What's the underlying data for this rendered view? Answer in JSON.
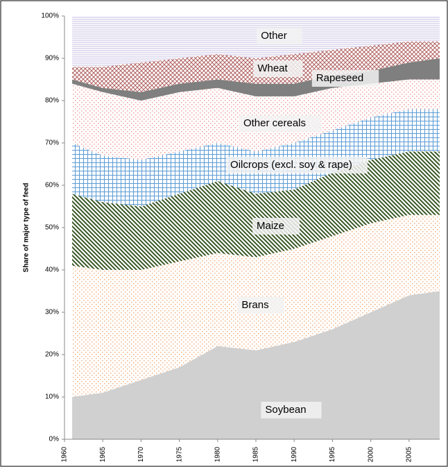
{
  "chart_data": {
    "type": "stacked_area",
    "y_label": "Share of major type of feed",
    "x": [
      1961,
      1965,
      1970,
      1975,
      1980,
      1985,
      1990,
      1995,
      2000,
      2005,
      2009
    ],
    "xlim": [
      1960,
      2009
    ],
    "xticks": [
      1960,
      1965,
      1970,
      1975,
      1980,
      1985,
      1990,
      1995,
      2000,
      2005
    ],
    "ylim": [
      0,
      100
    ],
    "yticks": [
      {
        "value": 0,
        "label": "0%"
      },
      {
        "value": 10,
        "label": "10%"
      },
      {
        "value": 20,
        "label": "20%"
      },
      {
        "value": 30,
        "label": "30%"
      },
      {
        "value": 40,
        "label": "40%"
      },
      {
        "value": 50,
        "label": "50%"
      },
      {
        "value": 60,
        "label": "60%"
      },
      {
        "value": 70,
        "label": "70%"
      },
      {
        "value": 80,
        "label": "80%"
      },
      {
        "value": 90,
        "label": "90%"
      },
      {
        "value": 100,
        "label": "100%"
      }
    ],
    "series": [
      {
        "name": "Soybean",
        "color": "#d0d0d0",
        "values": [
          10,
          11,
          14,
          17,
          22,
          21,
          23,
          26,
          30,
          34,
          35
        ]
      },
      {
        "name": "Brans",
        "color": "#f4b183",
        "values": [
          31,
          29,
          26,
          25,
          22,
          22,
          22,
          22,
          21,
          19,
          18
        ]
      },
      {
        "name": "Maize",
        "color": "#375623",
        "values": [
          17,
          16,
          15,
          16,
          17,
          15,
          14,
          15,
          15,
          15,
          15
        ]
      },
      {
        "name": "Oilcrops (excl. soy & rape)",
        "color": "#5b9bd5",
        "values": [
          12,
          11,
          11,
          10,
          9,
          10,
          11,
          10,
          10,
          10,
          10
        ]
      },
      {
        "name": "Other cereals",
        "color": "#f19c9c",
        "values": [
          14,
          15,
          14,
          14,
          13,
          13,
          11,
          10,
          8,
          7,
          7
        ]
      },
      {
        "name": "Rapeseed",
        "color": "#7f7f7f",
        "values": [
          1,
          1,
          2,
          2,
          2,
          3,
          3,
          3,
          3,
          4,
          5
        ]
      },
      {
        "name": "Wheat",
        "color": "#b06060",
        "values": [
          3,
          5,
          7,
          6,
          6,
          6,
          7,
          6,
          6,
          5,
          4
        ]
      },
      {
        "name": "Other",
        "color": "#8e7cc3",
        "values": [
          12,
          12,
          11,
          10,
          9,
          10,
          9,
          8,
          7,
          6,
          6
        ]
      }
    ]
  }
}
